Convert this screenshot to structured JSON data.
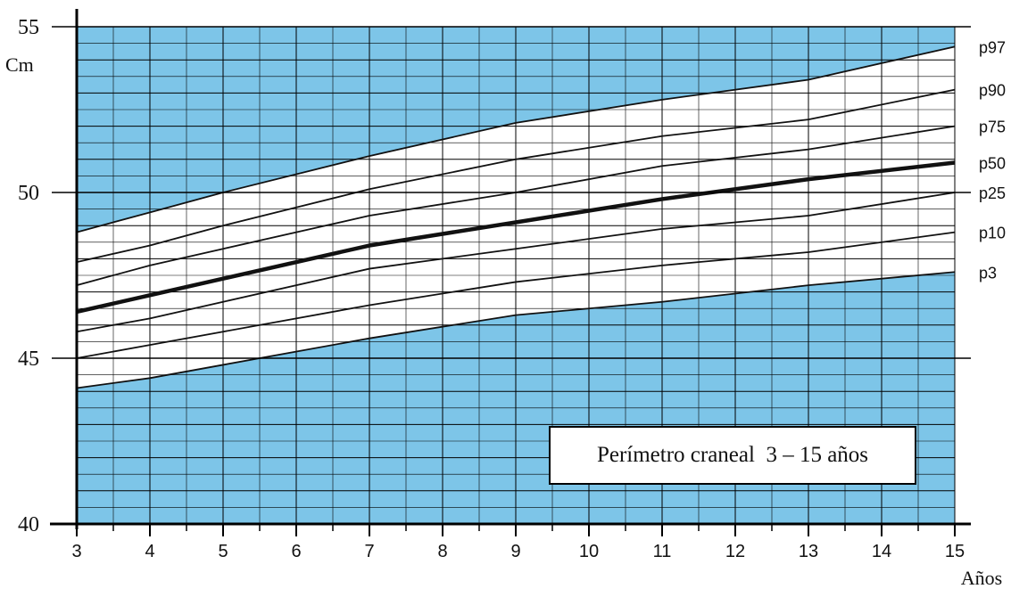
{
  "chart_data": {
    "type": "line",
    "title": "Perímetro craneal  3 – 15 años",
    "xlabel": "Años",
    "ylabel": "Cm",
    "xlim": [
      3,
      15
    ],
    "ylim": [
      40,
      55
    ],
    "x_ticks": [
      "3",
      "4",
      "5",
      "6",
      "7",
      "8",
      "9",
      "10",
      "11",
      "12",
      "13",
      "14",
      "15"
    ],
    "y_ticks": [
      "40",
      "45",
      "50",
      "55"
    ],
    "grid": true,
    "band_colors": {
      "outside_range_fill": "#7dc5e8",
      "inside_range_fill": "#ffffff"
    },
    "x": [
      3,
      4,
      5,
      7,
      9,
      11,
      13,
      15
    ],
    "series": [
      {
        "name": "p97",
        "values": [
          48.8,
          49.4,
          50.0,
          51.1,
          52.1,
          52.8,
          53.4,
          54.4
        ]
      },
      {
        "name": "p90",
        "values": [
          47.9,
          48.4,
          49.0,
          50.1,
          51.0,
          51.7,
          52.2,
          53.1
        ]
      },
      {
        "name": "p75",
        "values": [
          47.2,
          47.8,
          48.3,
          49.3,
          50.0,
          50.8,
          51.3,
          52.0
        ]
      },
      {
        "name": "p50",
        "values": [
          46.4,
          46.9,
          47.4,
          48.4,
          49.1,
          49.8,
          50.4,
          50.9
        ]
      },
      {
        "name": "p25",
        "values": [
          45.8,
          46.2,
          46.7,
          47.7,
          48.3,
          48.9,
          49.3,
          50.0
        ]
      },
      {
        "name": "p10",
        "values": [
          45.0,
          45.4,
          45.8,
          46.6,
          47.3,
          47.8,
          48.2,
          48.8
        ]
      },
      {
        "name": "p3",
        "values": [
          44.1,
          44.4,
          44.8,
          45.6,
          46.3,
          46.7,
          47.2,
          47.6
        ]
      }
    ]
  }
}
